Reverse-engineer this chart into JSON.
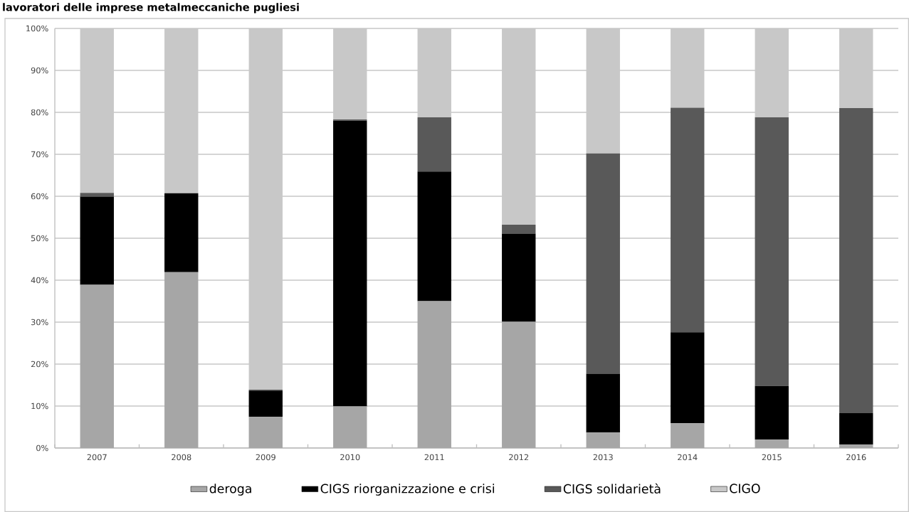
{
  "chart_data": {
    "type": "bar",
    "title": "lavoratori delle imprese metalmeccaniche pugliesi",
    "categories": [
      "2007",
      "2008",
      "2009",
      "2010",
      "2011",
      "2012",
      "2013",
      "2014",
      "2015",
      "2016"
    ],
    "stacked": true,
    "grid": "y",
    "legend": "bottom",
    "ylim": [
      0,
      100
    ],
    "yticks": [
      {
        "value": 0,
        "label": "0%"
      },
      {
        "value": 10,
        "label": "10%"
      },
      {
        "value": 20,
        "label": "20%"
      },
      {
        "value": 30,
        "label": "30%"
      },
      {
        "value": 40,
        "label": "40%"
      },
      {
        "value": 50,
        "label": "50%"
      },
      {
        "value": 60,
        "label": "60%"
      },
      {
        "value": 70,
        "label": "70%"
      },
      {
        "value": 80,
        "label": "80%"
      },
      {
        "value": 90,
        "label": "90%"
      },
      {
        "value": 100,
        "label": "100%"
      }
    ],
    "series": [
      {
        "name": "deroga",
        "color": "#a6a6a6",
        "values": [
          38.9,
          41.9,
          7.4,
          9.9,
          35.0,
          30.1,
          3.7,
          5.9,
          2.0,
          0.8
        ]
      },
      {
        "name": "CIGS riorganizzazione e crisi",
        "color": "#000000",
        "values": [
          21.0,
          18.8,
          6.3,
          68.1,
          30.9,
          21.0,
          14.0,
          21.7,
          12.8,
          7.5
        ]
      },
      {
        "name": "CIGS solidarietà",
        "color": "#595959",
        "values": [
          0.9,
          0,
          0.2,
          0.3,
          12.9,
          2.1,
          52.5,
          53.5,
          64.0,
          72.7
        ]
      },
      {
        "name": "CIGO",
        "color": "#c8c8c8",
        "values": [
          39.2,
          39.3,
          86.1,
          21.7,
          21.2,
          46.8,
          29.8,
          18.9,
          21.2,
          19.0
        ]
      }
    ]
  }
}
